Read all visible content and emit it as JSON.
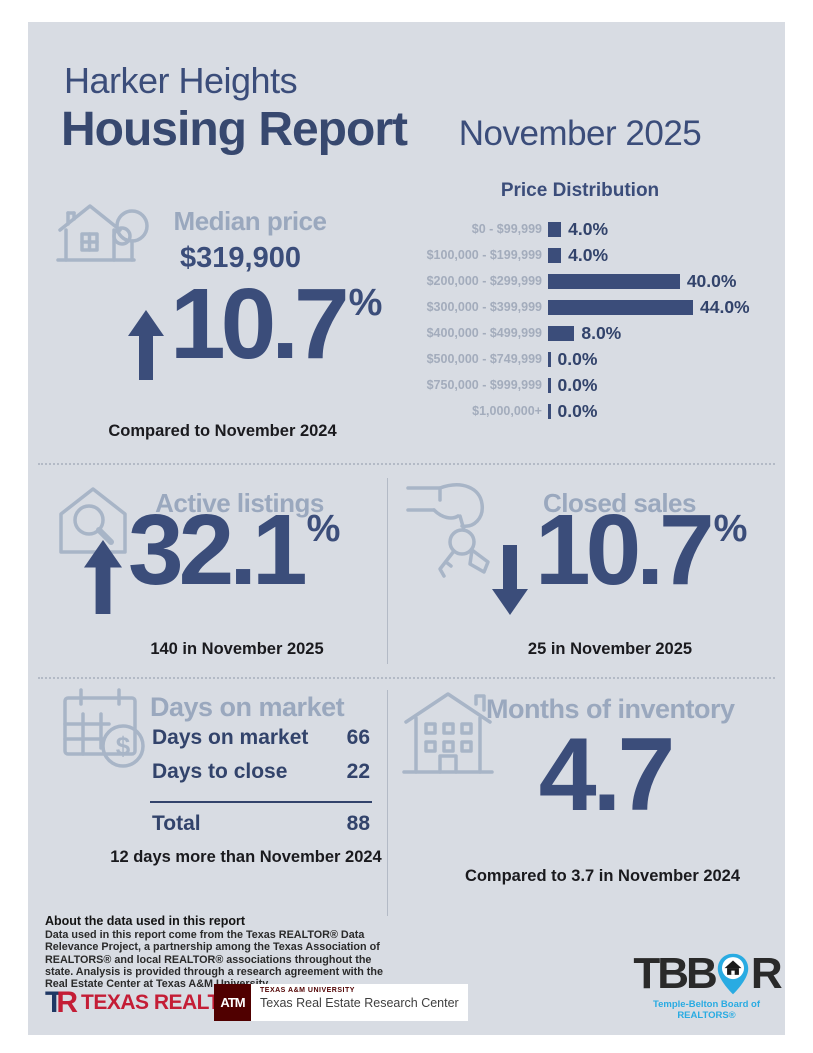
{
  "colors": {
    "navy": "#3b4d7a",
    "card_background": "#d8dce3",
    "muted_heading": "#9aa8be",
    "chart_label": "#a3acbc",
    "body_text": "#1a1a1e",
    "texas_realtors_red": "#c41d36",
    "tamu_maroon": "#500000",
    "tbbor_blue": "#29abe2"
  },
  "header": {
    "title_line1": "Harker Heights",
    "title_line2": "Housing Report",
    "period": "November 2025"
  },
  "chart_data": {
    "type": "bar",
    "orientation": "horizontal",
    "title": "Price Distribution",
    "categories": [
      "$0 - $99,999",
      "$100,000 - $199,999",
      "$200,000 - $299,999",
      "$300,000 - $399,999",
      "$400,000 - $499,999",
      "$500,000 - $749,999",
      "$750,000 - $999,999",
      "$1,000,000+"
    ],
    "values": [
      4.0,
      4.0,
      40.0,
      44.0,
      8.0,
      0.0,
      0.0,
      0.0
    ],
    "value_labels": [
      "4.0%",
      "4.0%",
      "40.0%",
      "44.0%",
      "8.0%",
      "0.0%",
      "0.0%",
      "0.0%"
    ],
    "unit": "%",
    "xlim": [
      0,
      44
    ],
    "grid": false,
    "legend": false
  },
  "median_price": {
    "label": "Median price",
    "value": "$319,900",
    "change": "10.7",
    "percent_sign": "%",
    "direction": "up",
    "comparison": "Compared to November 2024",
    "icon": "house-tree-icon"
  },
  "active_listings": {
    "label": "Active listings",
    "change": "32.1",
    "percent_sign": "%",
    "direction": "up",
    "note": "140 in November 2025",
    "icon": "house-magnifier-icon"
  },
  "closed_sales": {
    "label": "Closed sales",
    "change": "10.7",
    "percent_sign": "%",
    "direction": "down",
    "note": "25 in November 2025",
    "icon": "hand-keys-icon"
  },
  "days_on_market": {
    "label": "Days on market",
    "rows": [
      {
        "label": "Days on market",
        "value": "66"
      },
      {
        "label": "Days to close",
        "value": "22"
      }
    ],
    "total_label": "Total",
    "total_value": "88",
    "note": "12 days more than November 2024",
    "icon": "calendar-dollar-icon"
  },
  "months_of_inventory": {
    "label": "Months of inventory",
    "value": "4.7",
    "note": "Compared to 3.7 in November 2024",
    "icon": "apartment-building-icon"
  },
  "footer": {
    "about_title": "About the data used in this report",
    "about_body": "Data used in this report come from the Texas REALTOR® Data Relevance Project, a partnership among the Texas Association of REALTORS® and local REALTOR® associations throughout the state. Analysis is provided through a research agreement with the Real Estate Center at Texas A&M University.",
    "texas_realtors_mark": "TR",
    "texas_realtors_label": "TEXAS REALTORS",
    "tamu_monogram": "ATM",
    "tamu_university_label": "TEXAS A&M UNIVERSITY",
    "tamu_center_label": "Texas Real Estate Research Center",
    "tbbor_left": "TBB",
    "tbbor_right": "R",
    "tbbor_tagline": "Temple-Belton Board of REALTORS®"
  }
}
